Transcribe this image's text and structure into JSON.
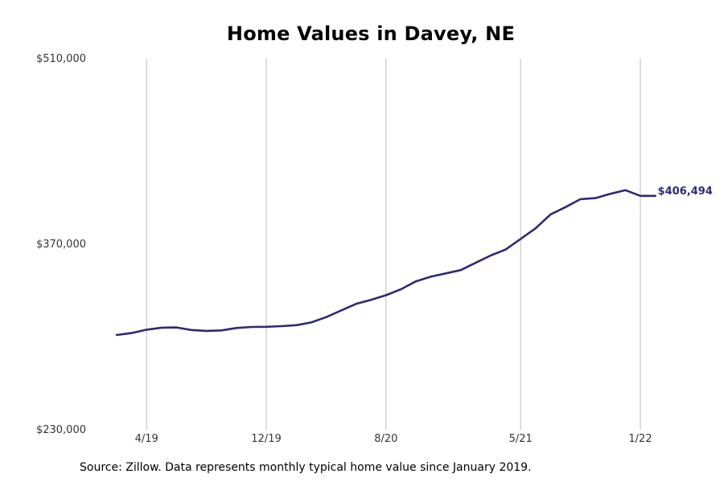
{
  "chart_data": {
    "type": "line",
    "title": "Home Values in Davey, NE",
    "x": [
      "2019-02",
      "2019-03",
      "2019-04",
      "2019-05",
      "2019-06",
      "2019-07",
      "2019-08",
      "2019-09",
      "2019-10",
      "2019-11",
      "2019-12",
      "2020-01",
      "2020-02",
      "2020-03",
      "2020-04",
      "2020-05",
      "2020-06",
      "2020-07",
      "2020-08",
      "2020-09",
      "2020-10",
      "2020-11",
      "2020-12",
      "2021-01",
      "2021-02",
      "2021-03",
      "2021-04",
      "2021-05",
      "2021-06",
      "2021-07",
      "2021-08",
      "2021-09",
      "2021-10",
      "2021-11",
      "2021-12",
      "2022-01",
      "2022-02"
    ],
    "series": [
      {
        "values": [
          301500,
          303000,
          305500,
          307000,
          307200,
          305300,
          304600,
          305000,
          306800,
          307600,
          307700,
          308200,
          308900,
          311000,
          315000,
          320000,
          325000,
          328000,
          331500,
          336000,
          342000,
          345500,
          348000,
          350500,
          356000,
          361500,
          366000,
          374000,
          382000,
          392500,
          398000,
          404000,
          404800,
          408000,
          410800,
          406494,
          406494
        ],
        "color": "#2e2a72",
        "end_label": "$406,494"
      }
    ],
    "xticks": [
      {
        "value": "2019-04",
        "label": "4/19"
      },
      {
        "value": "2019-12",
        "label": "12/19"
      },
      {
        "value": "2020-08",
        "label": "8/20"
      },
      {
        "value": "2021-05",
        "label": "5/21"
      },
      {
        "value": "2022-01",
        "label": "1/22"
      }
    ],
    "yticks": [
      {
        "value": 230000,
        "label": "$230,000"
      },
      {
        "value": 370000,
        "label": "$370,000"
      },
      {
        "value": 510000,
        "label": "$510,000"
      }
    ],
    "ylim": [
      230000,
      510000
    ],
    "grid": "vertical",
    "legend": "none"
  },
  "footer": {
    "source": "Source: Zillow. Data represents monthly typical home value since January 2019."
  }
}
